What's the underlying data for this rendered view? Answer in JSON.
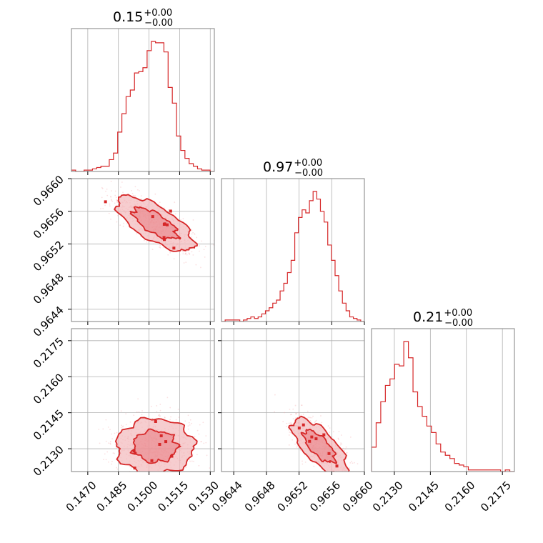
{
  "colors": {
    "accent": "#d62728",
    "fill_light": "#f2b8ba",
    "fill_mid": "#e77a80",
    "grid": "#b0b0b0",
    "frame": "#808080"
  },
  "chart_data": {
    "type": "corner",
    "parameters": [
      {
        "title": {
          "value": "0.15",
          "upper": "+0.00",
          "lower": "−0.00"
        },
        "range": [
          0.1462,
          0.1532
        ],
        "ticks": [
          0.147,
          0.1485,
          0.15,
          0.1515,
          0.153
        ],
        "tick_labels": [
          "0.1470",
          "0.1485",
          "0.1500",
          "0.1515",
          "0.1530"
        ],
        "mean": 0.1503,
        "sd": 0.0009,
        "hist": [
          1,
          0,
          0,
          1,
          1,
          2,
          3,
          4,
          4,
          9,
          14,
          30,
          44,
          57,
          62,
          75,
          76,
          79,
          92,
          99,
          98,
          98,
          91,
          64,
          52,
          27,
          16,
          10,
          6,
          4,
          2,
          1,
          1,
          0
        ]
      },
      {
        "title": {
          "value": "0.97",
          "upper": "+0.00",
          "lower": "−0.00"
        },
        "range": [
          0.96425,
          0.966
        ],
        "ticks": [
          0.9644,
          0.9648,
          0.9652,
          0.9656,
          0.966
        ],
        "tick_labels": [
          "0.9644",
          "0.9648",
          "0.9652",
          "0.9656",
          "0.9660"
        ],
        "mean": 0.96545,
        "sd": 0.00016,
        "hist": [
          0,
          1,
          1,
          1,
          1,
          0,
          1,
          2,
          3,
          2,
          3,
          5,
          7,
          9,
          12,
          14,
          20,
          25,
          32,
          40,
          58,
          68,
          73,
          71,
          79,
          85,
          80,
          72,
          65,
          50,
          40,
          30,
          20,
          12,
          7,
          3,
          2,
          1,
          0
        ]
      },
      {
        "title": {
          "value": "0.21",
          "upper": "+0.00",
          "lower": "−0.00"
        },
        "range": [
          0.21205,
          0.218
        ],
        "ticks": [
          0.213,
          0.2145,
          0.216,
          0.2175
        ],
        "tick_labels": [
          "0.2130",
          "0.2145",
          "0.2160",
          "0.2175"
        ],
        "mean": 0.2131,
        "sd": 0.00055,
        "hist": [
          15,
          30,
          43,
          53,
          57,
          66,
          65,
          80,
          70,
          49,
          40,
          34,
          28,
          24,
          17,
          12,
          10,
          8,
          5,
          4,
          3,
          1,
          1,
          1,
          1,
          1,
          1,
          1,
          0,
          1,
          0
        ]
      }
    ],
    "correlations": {
      "p0_p1": -0.7,
      "p0_p2": 0.0,
      "p1_p2": -0.7
    },
    "contour_levels": [
      "1-sigma",
      "2-sigma"
    ],
    "grid": true
  }
}
